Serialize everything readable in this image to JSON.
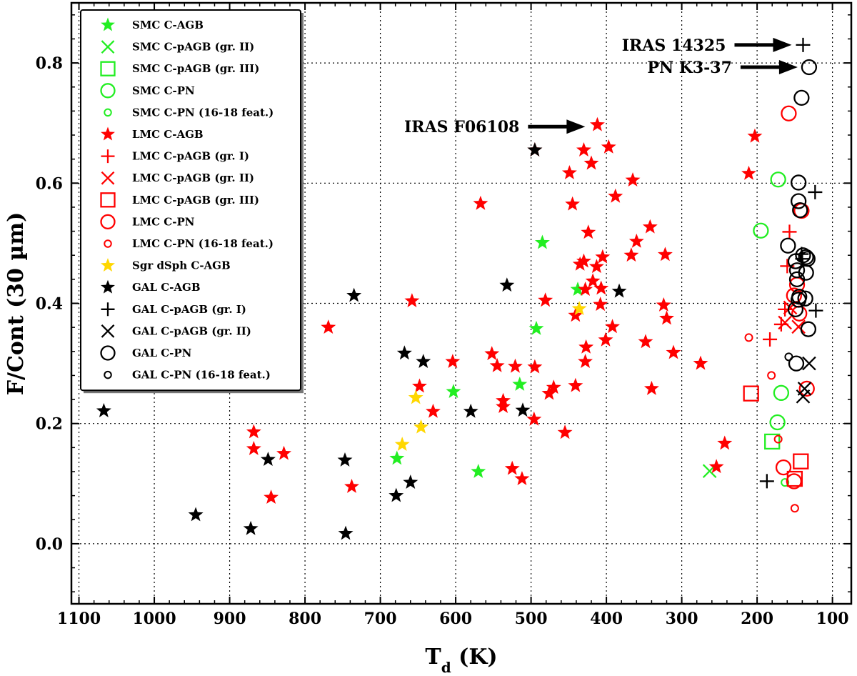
{
  "chart_data": {
    "type": "scatter",
    "title": "",
    "xlabel": "T",
    "xlabel_sub": "d",
    "xlabel_unit": " (K)",
    "ylabel": "F/Cont (30 µm)",
    "xlim": [
      1110,
      75
    ],
    "ylim": [
      -0.1,
      0.9
    ],
    "xticks": [
      1100,
      1000,
      900,
      800,
      700,
      600,
      500,
      400,
      300,
      200,
      100
    ],
    "yticks": [
      0.0,
      0.2,
      0.4,
      0.6,
      0.8
    ],
    "xtick_labels": [
      "1100",
      "1000",
      "900",
      "800",
      "700",
      "600",
      "500",
      "400",
      "300",
      "200",
      "100"
    ],
    "ytick_labels": [
      "0.0",
      "0.2",
      "0.4",
      "0.6",
      "0.8"
    ],
    "grid": "dotted at ticks",
    "legend_position": "top-left",
    "annotations": [
      {
        "text": "IRAS 14325",
        "x": 139,
        "y": 0.83
      },
      {
        "text": "PN K3-37",
        "x": 131,
        "y": 0.793
      },
      {
        "text": "IRAS F06108",
        "x": 413,
        "y": 0.694
      }
    ],
    "series": [
      {
        "name": "SMC C-AGB",
        "marker": "star",
        "color": "#22ee22",
        "small": false,
        "points": [
          [
            485,
            0.501
          ],
          [
            438,
            0.423
          ],
          [
            493,
            0.358
          ],
          [
            515,
            0.265
          ],
          [
            603,
            0.253
          ],
          [
            678,
            0.142
          ],
          [
            570,
            0.12
          ]
        ]
      },
      {
        "name": "SMC C-pAGB (gr. II)",
        "marker": "x",
        "color": "#22ee22",
        "small": false,
        "points": [
          [
            263,
            0.121
          ]
        ]
      },
      {
        "name": "SMC C-pAGB (gr. III)",
        "marker": "square",
        "color": "#22ee22",
        "small": false,
        "points": [
          [
            180,
            0.17
          ]
        ]
      },
      {
        "name": "SMC C-PN",
        "marker": "circle",
        "color": "#22ee22",
        "small": false,
        "points": [
          [
            172,
            0.606
          ],
          [
            195,
            0.521
          ],
          [
            168,
            0.251
          ],
          [
            173,
            0.202
          ]
        ]
      },
      {
        "name": "SMC C-PN (16-18 feat.)",
        "marker": "circle",
        "color": "#22ee22",
        "small": true,
        "points": [
          [
            163,
            0.102
          ]
        ]
      },
      {
        "name": "LMC C-AGB",
        "marker": "star",
        "color": "#ff0000",
        "small": false,
        "points": [
          [
            412,
            0.697
          ],
          [
            495,
            0.655
          ],
          [
            430,
            0.655
          ],
          [
            397,
            0.66
          ],
          [
            420,
            0.633
          ],
          [
            449,
            0.617
          ],
          [
            365,
            0.605
          ],
          [
            388,
            0.578
          ],
          [
            445,
            0.565
          ],
          [
            567,
            0.566
          ],
          [
            342,
            0.527
          ],
          [
            424,
            0.518
          ],
          [
            360,
            0.503
          ],
          [
            322,
            0.481
          ],
          [
            367,
            0.48
          ],
          [
            405,
            0.477
          ],
          [
            430,
            0.47
          ],
          [
            435,
            0.465
          ],
          [
            413,
            0.461
          ],
          [
            418,
            0.437
          ],
          [
            407,
            0.425
          ],
          [
            428,
            0.423
          ],
          [
            658,
            0.404
          ],
          [
            481,
            0.405
          ],
          [
            408,
            0.398
          ],
          [
            324,
            0.397
          ],
          [
            441,
            0.38
          ],
          [
            320,
            0.375
          ],
          [
            392,
            0.361
          ],
          [
            769,
            0.36
          ],
          [
            401,
            0.339
          ],
          [
            348,
            0.336
          ],
          [
            427,
            0.327
          ],
          [
            552,
            0.316
          ],
          [
            311,
            0.318
          ],
          [
            604,
            0.303
          ],
          [
            428,
            0.303
          ],
          [
            521,
            0.295
          ],
          [
            545,
            0.296
          ],
          [
            495,
            0.294
          ],
          [
            275,
            0.3
          ],
          [
            441,
            0.263
          ],
          [
            340,
            0.258
          ],
          [
            648,
            0.262
          ],
          [
            470,
            0.26
          ],
          [
            476,
            0.25
          ],
          [
            537,
            0.238
          ],
          [
            537,
            0.228
          ],
          [
            630,
            0.22
          ],
          [
            496,
            0.207
          ],
          [
            868,
            0.186
          ],
          [
            455,
            0.185
          ],
          [
            243,
            0.167
          ],
          [
            868,
            0.158
          ],
          [
            828,
            0.15
          ],
          [
            525,
            0.125
          ],
          [
            254,
            0.128
          ],
          [
            512,
            0.108
          ],
          [
            738,
            0.095
          ],
          [
            845,
            0.077
          ],
          [
            203,
            0.678
          ],
          [
            211,
            0.616
          ]
        ]
      },
      {
        "name": "LMC C-pAGB (gr. I)",
        "marker": "plus",
        "color": "#ff0000",
        "small": false,
        "points": [
          [
            157,
            0.519
          ],
          [
            160,
            0.462
          ],
          [
            163,
            0.39
          ],
          [
            168,
            0.365
          ],
          [
            183,
            0.34
          ]
        ]
      },
      {
        "name": "LMC C-pAGB (gr. II)",
        "marker": "x",
        "color": "#ff0000",
        "small": false,
        "points": [
          [
            156,
            0.393
          ],
          [
            163,
            0.368
          ],
          [
            145,
            0.361
          ]
        ]
      },
      {
        "name": "LMC C-pAGB (gr. III)",
        "marker": "square",
        "color": "#ff0000",
        "small": false,
        "points": [
          [
            208,
            0.25
          ],
          [
            142,
            0.137
          ],
          [
            150,
            0.108
          ]
        ]
      },
      {
        "name": "LMC C-PN",
        "marker": "circle",
        "color": "#ff0000",
        "small": false,
        "points": [
          [
            158,
            0.716
          ],
          [
            141,
            0.554
          ],
          [
            147,
            0.431
          ],
          [
            151,
            0.413
          ],
          [
            144,
            0.383
          ],
          [
            134,
            0.258
          ],
          [
            165,
            0.127
          ],
          [
            151,
            0.104
          ]
        ]
      },
      {
        "name": "LMC C-PN (16-18 feat.)",
        "marker": "circle",
        "color": "#ff0000",
        "small": true,
        "points": [
          [
            211,
            0.343
          ],
          [
            181,
            0.28
          ],
          [
            172,
            0.174
          ],
          [
            150,
            0.059
          ]
        ]
      },
      {
        "name": "Sgr dSph C-AGB",
        "marker": "star",
        "color": "#ffd700",
        "small": false,
        "points": [
          [
            436,
            0.391
          ],
          [
            653,
            0.243
          ],
          [
            646,
            0.194
          ],
          [
            671,
            0.165
          ]
        ]
      },
      {
        "name": "GAL C-AGB",
        "marker": "star",
        "color": "#000000",
        "small": false,
        "points": [
          [
            495,
            0.655
          ],
          [
            735,
            0.413
          ],
          [
            532,
            0.43
          ],
          [
            383,
            0.42
          ],
          [
            668,
            0.317
          ],
          [
            643,
            0.303
          ],
          [
            580,
            0.22
          ],
          [
            511,
            0.222
          ],
          [
            1067,
            0.221
          ],
          [
            849,
            0.14
          ],
          [
            747,
            0.139
          ],
          [
            660,
            0.102
          ],
          [
            679,
            0.08
          ],
          [
            872,
            0.025
          ],
          [
            945,
            0.048
          ],
          [
            746,
            0.017
          ]
        ]
      },
      {
        "name": "GAL C-pAGB (gr. I)",
        "marker": "plus",
        "color": "#000000",
        "small": false,
        "points": [
          [
            139,
            0.83
          ],
          [
            123,
            0.585
          ],
          [
            141,
            0.482
          ],
          [
            140,
            0.474
          ],
          [
            122,
            0.388
          ],
          [
            187,
            0.104
          ]
        ]
      },
      {
        "name": "GAL C-pAGB (gr. II)",
        "marker": "x",
        "color": "#000000",
        "small": false,
        "points": [
          [
            131,
            0.3
          ],
          [
            137,
            0.258
          ],
          [
            139,
            0.245
          ]
        ]
      },
      {
        "name": "GAL C-PN",
        "marker": "circle",
        "color": "#000000",
        "small": false,
        "points": [
          [
            131,
            0.793
          ],
          [
            141,
            0.742
          ],
          [
            145,
            0.601
          ],
          [
            145,
            0.57
          ],
          [
            143,
            0.555
          ],
          [
            159,
            0.496
          ],
          [
            139,
            0.48
          ],
          [
            135,
            0.477
          ],
          [
            149,
            0.47
          ],
          [
            133,
            0.474
          ],
          [
            147,
            0.455
          ],
          [
            135,
            0.451
          ],
          [
            147,
            0.44
          ],
          [
            144,
            0.411
          ],
          [
            145,
            0.406
          ],
          [
            136,
            0.408
          ],
          [
            149,
            0.39
          ],
          [
            132,
            0.357
          ],
          [
            148,
            0.3
          ]
        ]
      },
      {
        "name": "GAL C-PN (16-18 feat.)",
        "marker": "circle",
        "color": "#000000",
        "small": true,
        "points": [
          [
            158,
            0.311
          ]
        ]
      }
    ]
  }
}
